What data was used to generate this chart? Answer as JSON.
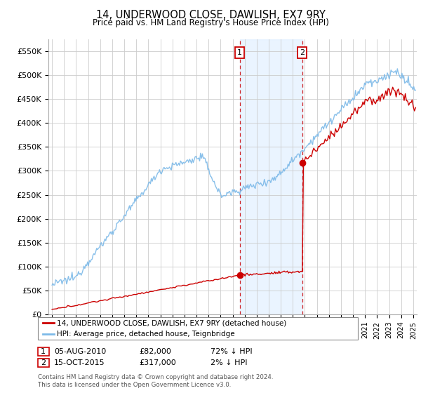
{
  "title": "14, UNDERWOOD CLOSE, DAWLISH, EX7 9RY",
  "subtitle": "Price paid vs. HM Land Registry's House Price Index (HPI)",
  "ylabel_ticks": [
    "£0",
    "£50K",
    "£100K",
    "£150K",
    "£200K",
    "£250K",
    "£300K",
    "£350K",
    "£400K",
    "£450K",
    "£500K",
    "£550K"
  ],
  "ytick_values": [
    0,
    50000,
    100000,
    150000,
    200000,
    250000,
    300000,
    350000,
    400000,
    450000,
    500000,
    550000
  ],
  "ylim": [
    0,
    575000
  ],
  "xlim_start": 1994.7,
  "xlim_end": 2025.3,
  "hpi_color": "#7cb9e8",
  "price_color": "#cc0000",
  "sale1_date": 2010.59,
  "sale1_price": 82000,
  "sale2_date": 2015.79,
  "sale2_price": 317000,
  "shade_color": "#ddeeff",
  "shade_alpha": 0.6,
  "grid_color": "#cccccc",
  "plot_bg_color": "#ffffff",
  "legend_line1": "14, UNDERWOOD CLOSE, DAWLISH, EX7 9RY (detached house)",
  "legend_line2": "HPI: Average price, detached house, Teignbridge",
  "table_row1_num": "1",
  "table_row1_date": "05-AUG-2010",
  "table_row1_price": "£82,000",
  "table_row1_hpi": "72% ↓ HPI",
  "table_row2_num": "2",
  "table_row2_date": "15-OCT-2015",
  "table_row2_price": "£317,000",
  "table_row2_hpi": "2% ↓ HPI",
  "footer": "Contains HM Land Registry data © Crown copyright and database right 2024.\nThis data is licensed under the Open Government Licence v3.0.",
  "background_color": "#ffffff"
}
